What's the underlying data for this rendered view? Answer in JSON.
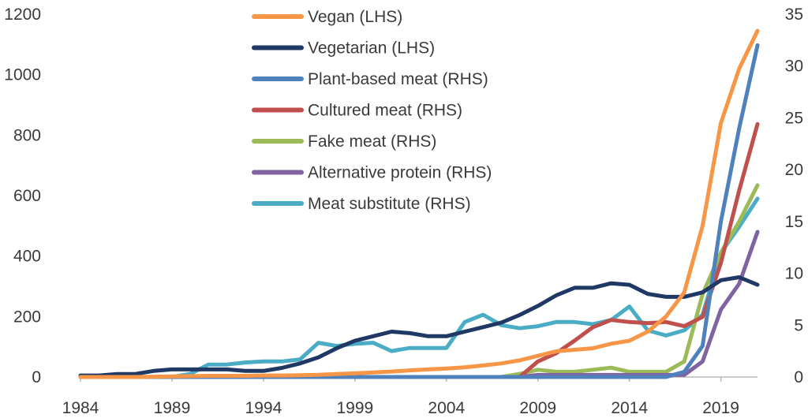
{
  "chart_data": {
    "type": "line",
    "x": [
      1984,
      1985,
      1986,
      1987,
      1988,
      1989,
      1990,
      1991,
      1992,
      1993,
      1994,
      1995,
      1996,
      1997,
      1998,
      1999,
      2000,
      2001,
      2002,
      2003,
      2004,
      2005,
      2006,
      2007,
      2008,
      2009,
      2010,
      2011,
      2012,
      2013,
      2014,
      2015,
      2016,
      2017,
      2018,
      2019,
      2020,
      2021
    ],
    "xlim": [
      1984,
      2021
    ],
    "x_ticks": [
      "1984",
      "1989",
      "1994",
      "1999",
      "2004",
      "2009",
      "2014",
      "2019"
    ],
    "ylim_left": [
      0,
      1200
    ],
    "y_ticks_left": [
      "0",
      "200",
      "400",
      "600",
      "800",
      "1000",
      "1200"
    ],
    "ylim_right": [
      0,
      35
    ],
    "y_ticks_right": [
      "0",
      "5",
      "10",
      "15",
      "20",
      "25",
      "30",
      "35"
    ],
    "legend_position": "top-center",
    "series": [
      {
        "name": "Vegan (LHS)",
        "axis": "left",
        "color": "#F79646",
        "values": [
          0,
          0,
          0,
          0,
          1,
          2,
          3,
          4,
          4,
          4,
          5,
          5,
          6,
          7,
          10,
          12,
          15,
          18,
          22,
          25,
          28,
          32,
          38,
          45,
          55,
          70,
          85,
          90,
          95,
          110,
          120,
          150,
          200,
          280,
          500,
          840,
          1020,
          1145
        ]
      },
      {
        "name": "Vegetarian (LHS)",
        "axis": "left",
        "color": "#1F3864",
        "values": [
          5,
          5,
          10,
          10,
          20,
          25,
          25,
          25,
          25,
          20,
          20,
          30,
          45,
          65,
          95,
          120,
          135,
          150,
          145,
          135,
          135,
          150,
          165,
          180,
          205,
          235,
          270,
          295,
          295,
          310,
          305,
          275,
          265,
          265,
          280,
          320,
          330,
          305
        ]
      },
      {
        "name": "Plant-based meat (RHS)",
        "axis": "right",
        "color": "#4F81BD",
        "values": [
          0,
          0,
          0,
          0,
          0,
          0,
          0,
          0,
          0,
          0,
          0,
          0,
          0,
          0,
          0,
          0,
          0,
          0,
          0,
          0,
          0,
          0,
          0,
          0,
          0,
          0,
          0,
          0,
          0,
          0,
          0,
          0,
          0,
          0.5,
          3,
          15,
          24,
          32
        ]
      },
      {
        "name": "Cultured meat (RHS)",
        "axis": "right",
        "color": "#C0504D",
        "values": [
          0,
          0,
          0,
          0,
          0,
          0,
          0,
          0,
          0,
          0,
          0,
          0,
          0,
          0,
          0,
          0,
          0,
          0,
          0,
          0,
          0,
          0,
          0,
          0,
          0,
          1.5,
          2.3,
          3.5,
          4.8,
          5.5,
          5.3,
          5.2,
          5.3,
          4.9,
          5.8,
          11,
          18,
          24.4
        ]
      },
      {
        "name": "Fake meat (RHS)",
        "axis": "right",
        "color": "#9BBB59",
        "values": [
          0,
          0,
          0,
          0,
          0,
          0,
          0,
          0,
          0,
          0,
          0,
          0,
          0,
          0,
          0,
          0,
          0,
          0,
          0,
          0,
          0,
          0,
          0,
          0,
          0.3,
          0.7,
          0.5,
          0.5,
          0.7,
          0.9,
          0.5,
          0.5,
          0.5,
          1.5,
          8,
          12,
          15,
          18.5
        ]
      },
      {
        "name": "Alternative protein (RHS)",
        "axis": "right",
        "color": "#8064A2",
        "values": [
          0,
          0,
          0,
          0,
          0,
          0,
          0,
          0,
          0,
          0,
          0,
          0,
          0,
          0,
          0,
          0,
          0,
          0,
          0,
          0,
          0,
          0,
          0,
          0,
          0,
          0.2,
          0.2,
          0.2,
          0.2,
          0.2,
          0.2,
          0.2,
          0.2,
          0.2,
          1.5,
          6.5,
          9,
          14
        ]
      },
      {
        "name": "Meat substitute (RHS)",
        "axis": "right",
        "color": "#4BACC6",
        "values": [
          0,
          0,
          0,
          0,
          0,
          0,
          0.3,
          1.2,
          1.2,
          1.4,
          1.5,
          1.5,
          1.7,
          3.3,
          3.0,
          3.2,
          3.3,
          2.5,
          2.8,
          2.8,
          2.8,
          5.3,
          6.0,
          5.0,
          4.7,
          4.9,
          5.3,
          5.3,
          5.1,
          5.5,
          6.8,
          4.5,
          4.0,
          4.5,
          6.0,
          12,
          14.5,
          17.2
        ]
      }
    ]
  }
}
